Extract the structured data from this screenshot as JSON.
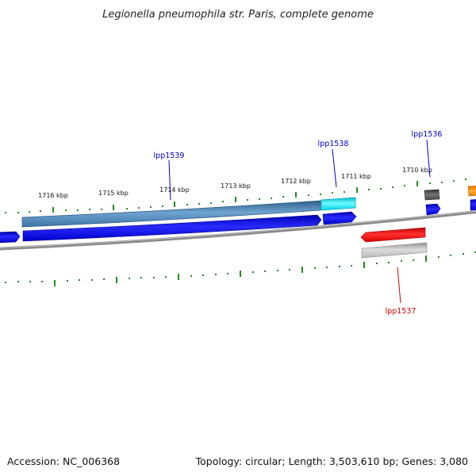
{
  "title": "Legionella pneumophila str. Paris, complete genome",
  "footer": {
    "accession": "Accession: NC_006368",
    "summary": "Topology: circular; Length: 3,503,610 bp; Genes: 3,080"
  },
  "colors": {
    "tick": "#228b22",
    "backbone": "#808080",
    "label_blue": "#0000cc",
    "label_red": "#cc0000",
    "steelblue": "#4682b4",
    "cyan": "#00e5ee",
    "blue": "#0000ff",
    "red": "#ff0000",
    "darkgray": "#555555",
    "lightgray": "#c0c0c0",
    "orange": "#ff9900"
  },
  "tick_labels": [
    "1716 kbp",
    "1715 kbp",
    "1714 kbp",
    "1713 kbp",
    "1712 kbp",
    "1711 kbp",
    "1710 kbp"
  ],
  "gene_labels": [
    {
      "name": "lpp1539",
      "color": "label_blue"
    },
    {
      "name": "lpp1538",
      "color": "label_blue"
    },
    {
      "name": "lpp1536",
      "color": "label_blue"
    },
    {
      "name": "lpp1537",
      "color": "label_red"
    }
  ]
}
